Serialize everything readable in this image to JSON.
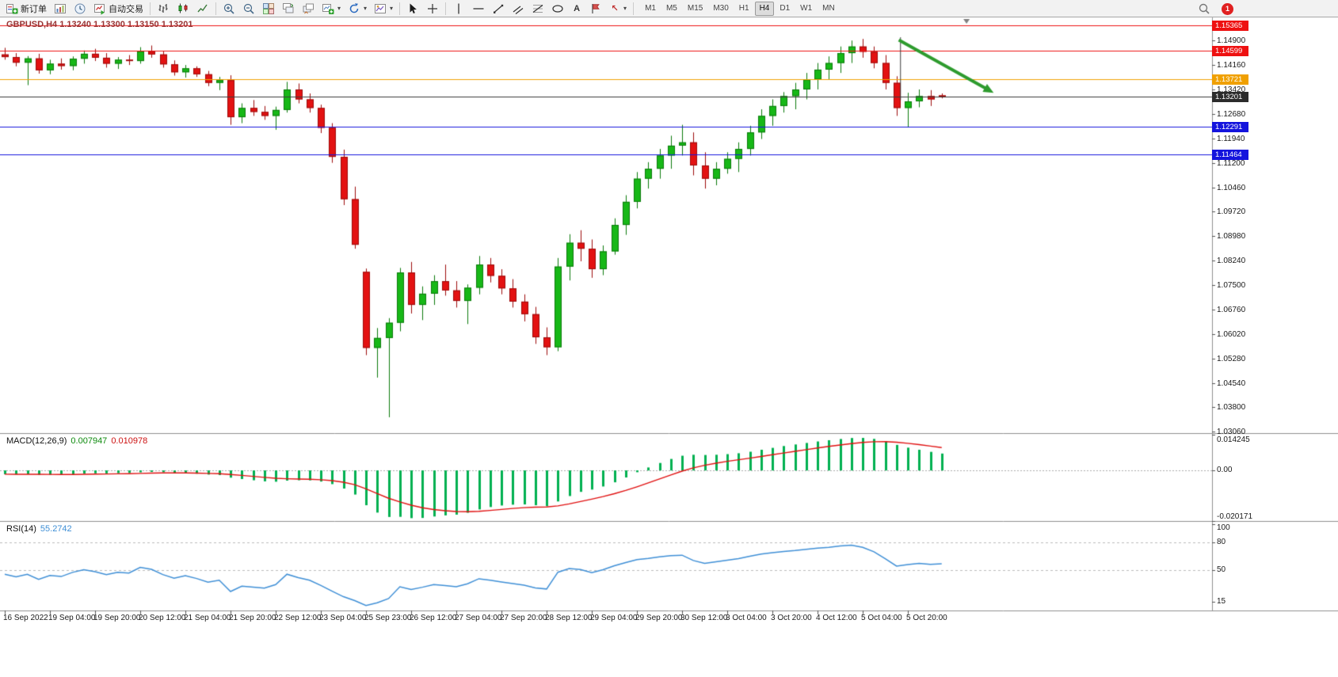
{
  "toolbar": {
    "new_order_label": "新订单",
    "auto_trading_label": "自动交易",
    "timeframes": [
      "M1",
      "M5",
      "M15",
      "M30",
      "H1",
      "H4",
      "D1",
      "W1",
      "MN"
    ],
    "active_timeframe": "H4",
    "notification_count": "1",
    "text_tool_glyph": "A",
    "arrow_tool_glyph": "↖"
  },
  "chart": {
    "symbol_ohlc_label": "GBPUSD,H4 1.13240 1.13300 1.13150 1.13201"
  },
  "chart_data": {
    "type": "candlestick",
    "symbol": "GBPUSD",
    "timeframe": "H4",
    "current_bar": {
      "open": "1.13240",
      "high": "1.13300",
      "low": "1.13150",
      "close": "1.13201"
    },
    "bid": 1.13201,
    "price_range": {
      "top": 1.156,
      "bottom": 1.0302
    },
    "price_axis_ticks": [
      "1.14900",
      "1.14160",
      "1.13420",
      "1.12680",
      "1.11940",
      "1.11200",
      "1.10460",
      "1.09720",
      "1.08980",
      "1.08240",
      "1.07500",
      "1.06760",
      "1.06020",
      "1.05280",
      "1.04540",
      "1.03800",
      "1.03060"
    ],
    "horizontal_lines": [
      {
        "price": 1.15365,
        "label": "1.15365",
        "color": "#ee1111"
      },
      {
        "price": 1.14599,
        "label": "1.14599",
        "color": "#ee1111"
      },
      {
        "price": 1.13721,
        "label": "1.13721",
        "color": "#f0a000"
      },
      {
        "price": 1.13201,
        "label": "1.13201",
        "color": "#3a3a3a",
        "role": "bid"
      },
      {
        "price": 1.12291,
        "label": "1.12291",
        "color": "#1414dd"
      },
      {
        "price": 1.11464,
        "label": "1.11464",
        "color": "#1414dd"
      }
    ],
    "annotations": {
      "arrow": {
        "x1_bar": 79.2,
        "y1_price": 1.1492,
        "x2_bar": 87.6,
        "y2_price": 1.1332,
        "color": "#2e9b2e",
        "width": 4
      },
      "vline": {
        "bar": 79.35,
        "from_price": 1.15,
        "to_price": 1.131,
        "color": "#3c3c3c"
      },
      "shift_marker": {
        "bar": 85.2,
        "color": "#808080"
      }
    },
    "time_labels": [
      {
        "bar": 0,
        "text": "16 Sep 2022"
      },
      {
        "bar": 4,
        "text": "19 Sep 04:00"
      },
      {
        "bar": 8,
        "text": "19 Sep 20:00"
      },
      {
        "bar": 12,
        "text": "20 Sep 12:00"
      },
      {
        "bar": 16,
        "text": "21 Sep 04:00"
      },
      {
        "bar": 20,
        "text": "21 Sep 20:00"
      },
      {
        "bar": 24,
        "text": "22 Sep 12:00"
      },
      {
        "bar": 28,
        "text": "23 Sep 04:00"
      },
      {
        "bar": 32,
        "text": "25 Sep 23:00"
      },
      {
        "bar": 36,
        "text": "26 Sep 12:00"
      },
      {
        "bar": 40,
        "text": "27 Sep 04:00"
      },
      {
        "bar": 44,
        "text": "27 Sep 20:00"
      },
      {
        "bar": 48,
        "text": "28 Sep 12:00"
      },
      {
        "bar": 52,
        "text": "29 Sep 04:00"
      },
      {
        "bar": 56,
        "text": "29 Sep 20:00"
      },
      {
        "bar": 60,
        "text": "30 Sep 12:00"
      },
      {
        "bar": 64,
        "text": "3 Oct 04:00"
      },
      {
        "bar": 68,
        "text": "3 Oct 20:00"
      },
      {
        "bar": 72,
        "text": "4 Oct 12:00"
      },
      {
        "bar": 76,
        "text": "5 Oct 04:00"
      },
      {
        "bar": 80,
        "text": "5 Oct 20:00"
      }
    ],
    "candles": [
      [
        1.1448,
        1.1468,
        1.1432,
        1.144
      ],
      [
        1.144,
        1.1452,
        1.1412,
        1.1423
      ],
      [
        1.1423,
        1.1443,
        1.1355,
        1.1436
      ],
      [
        1.1436,
        1.145,
        1.139,
        1.14
      ],
      [
        1.14,
        1.1432,
        1.1388,
        1.142
      ],
      [
        1.142,
        1.1436,
        1.1402,
        1.1413
      ],
      [
        1.1413,
        1.1442,
        1.14,
        1.1435
      ],
      [
        1.1435,
        1.146,
        1.142,
        1.145
      ],
      [
        1.145,
        1.1465,
        1.1428,
        1.1438
      ],
      [
        1.1438,
        1.1452,
        1.1408,
        1.142
      ],
      [
        1.142,
        1.144,
        1.1404,
        1.1432
      ],
      [
        1.1432,
        1.1446,
        1.1416,
        1.1428
      ],
      [
        1.1428,
        1.147,
        1.142,
        1.1458
      ],
      [
        1.1458,
        1.1475,
        1.1438,
        1.1448
      ],
      [
        1.1448,
        1.1458,
        1.1408,
        1.1418
      ],
      [
        1.1418,
        1.143,
        1.1384,
        1.1394
      ],
      [
        1.1394,
        1.1416,
        1.1378,
        1.1406
      ],
      [
        1.1406,
        1.1412,
        1.138,
        1.1388
      ],
      [
        1.1388,
        1.1398,
        1.1352,
        1.1362
      ],
      [
        1.1362,
        1.138,
        1.134,
        1.137
      ],
      [
        1.137,
        1.1385,
        1.1235,
        1.1258
      ],
      [
        1.1258,
        1.13,
        1.124,
        1.1286
      ],
      [
        1.1286,
        1.131,
        1.1262,
        1.1274
      ],
      [
        1.1274,
        1.1292,
        1.125,
        1.1262
      ],
      [
        1.1262,
        1.129,
        1.122,
        1.128
      ],
      [
        1.128,
        1.1365,
        1.1272,
        1.1342
      ],
      [
        1.1342,
        1.136,
        1.13,
        1.1312
      ],
      [
        1.1312,
        1.133,
        1.1272,
        1.1286
      ],
      [
        1.1286,
        1.1296,
        1.121,
        1.1226
      ],
      [
        1.1226,
        1.124,
        1.112,
        1.1138
      ],
      [
        1.1138,
        1.116,
        1.0992,
        1.101
      ],
      [
        1.101,
        1.1048,
        1.086,
        1.0872
      ],
      [
        1.079,
        1.08,
        1.0538,
        1.056
      ],
      [
        1.056,
        1.062,
        1.047,
        1.059
      ],
      [
        1.059,
        1.065,
        1.035,
        1.0636
      ],
      [
        1.0636,
        1.0802,
        1.061,
        1.0788
      ],
      [
        1.0788,
        1.082,
        1.0664,
        1.069
      ],
      [
        1.069,
        1.0746,
        1.0644,
        1.0724
      ],
      [
        1.0724,
        1.078,
        1.069,
        1.0762
      ],
      [
        1.0762,
        1.0812,
        1.0718,
        1.0734
      ],
      [
        1.0734,
        1.0762,
        1.0682,
        1.0702
      ],
      [
        1.0702,
        1.0752,
        1.0632,
        1.0742
      ],
      [
        1.0742,
        1.0838,
        1.0722,
        1.0812
      ],
      [
        1.0812,
        1.0832,
        1.0758,
        1.0778
      ],
      [
        1.0778,
        1.0798,
        1.0722,
        1.074
      ],
      [
        1.074,
        1.0768,
        1.0682,
        1.07
      ],
      [
        1.07,
        1.0722,
        1.064,
        1.0662
      ],
      [
        1.0662,
        1.0684,
        1.0572,
        1.0592
      ],
      [
        1.0592,
        1.0622,
        1.0538,
        1.0562
      ],
      [
        1.0562,
        1.0832,
        1.055,
        1.0806
      ],
      [
        1.0806,
        1.0904,
        1.0764,
        1.0878
      ],
      [
        1.0878,
        1.0916,
        1.0822,
        1.086
      ],
      [
        1.086,
        1.0888,
        1.0772,
        1.0798
      ],
      [
        1.0798,
        1.087,
        1.078,
        1.0852
      ],
      [
        1.0852,
        1.0952,
        1.0842,
        1.0932
      ],
      [
        1.0932,
        1.1022,
        1.0902,
        1.1002
      ],
      [
        1.1002,
        1.1092,
        1.0982,
        1.1072
      ],
      [
        1.1072,
        1.1122,
        1.1042,
        1.1102
      ],
      [
        1.1102,
        1.1162,
        1.1072,
        1.1142
      ],
      [
        1.1142,
        1.1202,
        1.1102,
        1.1172
      ],
      [
        1.1172,
        1.1235,
        1.1142,
        1.1182
      ],
      [
        1.1182,
        1.1212,
        1.1082,
        1.1112
      ],
      [
        1.1112,
        1.1152,
        1.1042,
        1.1072
      ],
      [
        1.1072,
        1.1122,
        1.1052,
        1.1102
      ],
      [
        1.1102,
        1.1152,
        1.1087,
        1.1132
      ],
      [
        1.1132,
        1.1182,
        1.1092,
        1.1162
      ],
      [
        1.1162,
        1.1232,
        1.1142,
        1.1212
      ],
      [
        1.1212,
        1.1282,
        1.1192,
        1.1262
      ],
      [
        1.1262,
        1.1312,
        1.1232,
        1.1292
      ],
      [
        1.1292,
        1.1334,
        1.1272,
        1.1322
      ],
      [
        1.1322,
        1.1362,
        1.1282,
        1.1342
      ],
      [
        1.1342,
        1.1392,
        1.1312,
        1.1372
      ],
      [
        1.1372,
        1.1422,
        1.1342,
        1.1402
      ],
      [
        1.1402,
        1.1442,
        1.1372,
        1.1422
      ],
      [
        1.1422,
        1.1472,
        1.1392,
        1.1452
      ],
      [
        1.1452,
        1.149,
        1.1422,
        1.1472
      ],
      [
        1.1472,
        1.1495,
        1.1438,
        1.1456
      ],
      [
        1.1456,
        1.1472,
        1.1406,
        1.1422
      ],
      [
        1.1422,
        1.1446,
        1.1342,
        1.1362
      ],
      [
        1.1362,
        1.1382,
        1.1262,
        1.1286
      ],
      [
        1.1286,
        1.1332,
        1.1228,
        1.1306
      ],
      [
        1.1306,
        1.1342,
        1.1288,
        1.1322
      ],
      [
        1.1322,
        1.134,
        1.1292,
        1.1312
      ],
      [
        1.1324,
        1.133,
        1.1315,
        1.13201
      ]
    ],
    "macd": {
      "name": "MACD(12,26,9)",
      "value": "0.007947",
      "signal_value": "0.010978",
      "axis_ticks": [
        {
          "v": 0.014245,
          "text": "0.014245"
        },
        {
          "v": 0,
          "text": "0.00"
        },
        {
          "v": -0.020171,
          "text": "-0.020171"
        }
      ],
      "range": {
        "max": 0.014245,
        "min": -0.020171
      },
      "histogram_color": "#00b050",
      "signal_color": "#e01010"
    },
    "rsi": {
      "name": "RSI(14)",
      "value": "55.2742",
      "axis_ticks": [
        {
          "v": 100,
          "text": "100"
        },
        {
          "v": 80,
          "text": "80"
        },
        {
          "v": 50,
          "text": "50"
        },
        {
          "v": 15,
          "text": "15"
        }
      ],
      "levels": [
        80,
        50
      ],
      "range": {
        "max": 102,
        "min": 5
      },
      "line_color": "#3f8fd6"
    },
    "style": {
      "bull_color": "#17b817",
      "bear_color": "#e31212",
      "bull_edge": "#0b7a0b",
      "bear_edge": "#9c0b0b",
      "separator_color": "#8f8f8f",
      "axis_text_color": "#1a1a1a"
    }
  }
}
